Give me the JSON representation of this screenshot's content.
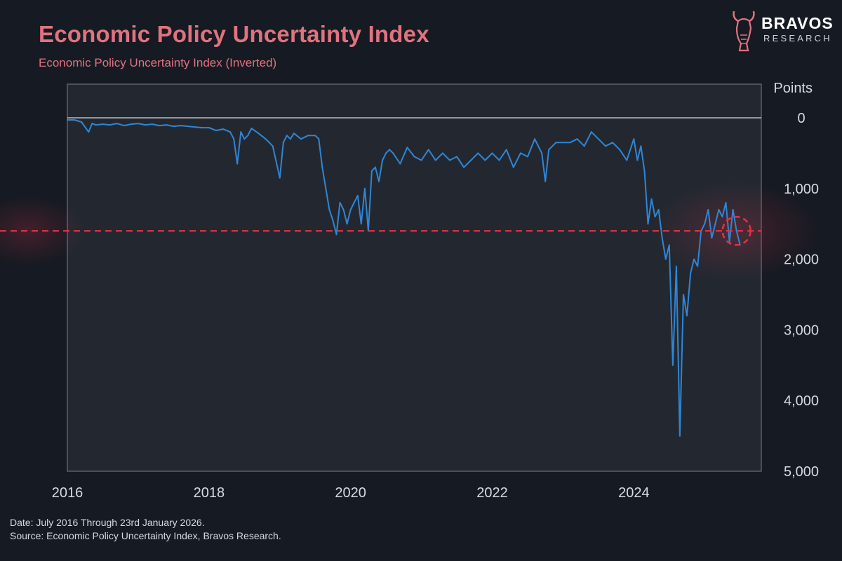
{
  "title": "Economic Policy Uncertainty Index",
  "subtitle": "Economic Policy Uncertainty Index (Inverted)",
  "logo": {
    "name": "BRAVOS",
    "tagline": "RESEARCH",
    "icon": "bull-icon"
  },
  "footer": {
    "date_note": "Date: July 2016 Through 23rd January 2026.",
    "source_note": "Source: Economic Policy Uncertainty Index, Bravos Research."
  },
  "colors": {
    "background": "#161a22",
    "plot_bg": "#232830",
    "line": "#2f86d6",
    "threshold": "#e03248",
    "title": "#e0737f"
  },
  "chart_data": {
    "type": "line",
    "title": "Economic Policy Uncertainty Index",
    "subtitle": "Economic Policy Uncertainty Index (Inverted)",
    "ylabel": "Points",
    "y_inverted": true,
    "ylim": [
      0,
      5000
    ],
    "y_ticks": [
      0,
      1000,
      2000,
      3000,
      4000,
      5000
    ],
    "y_tick_labels": [
      "0",
      "1,000",
      "2,000",
      "3,000",
      "4,000",
      "5,000"
    ],
    "xlim": [
      2016.0,
      2025.8
    ],
    "x_ticks": [
      2016,
      2018,
      2020,
      2022,
      2024
    ],
    "x_tick_labels": [
      "2016",
      "2018",
      "2020",
      "2022",
      "2024"
    ],
    "grid": false,
    "reference_line": {
      "y": 1600,
      "style": "dashed"
    },
    "highlight_marker": {
      "x": 2025.45,
      "y": 1600
    },
    "series": [
      {
        "x": [
          2016.0,
          2016.1,
          2016.2,
          2016.3,
          2016.35,
          2016.4,
          2016.5,
          2016.6,
          2016.7,
          2016.8,
          2016.9,
          2017.0,
          2017.1,
          2017.2,
          2017.3,
          2017.4,
          2017.5,
          2017.6,
          2017.7,
          2017.8,
          2017.9,
          2018.0,
          2018.1,
          2018.2,
          2018.3,
          2018.35,
          2018.4,
          2018.45,
          2018.5,
          2018.55,
          2018.6,
          2018.7,
          2018.8,
          2018.9,
          2019.0,
          2019.05,
          2019.1,
          2019.15,
          2019.2,
          2019.3,
          2019.4,
          2019.5,
          2019.55,
          2019.6,
          2019.7,
          2019.75,
          2019.8,
          2019.85,
          2019.9,
          2019.95,
          2020.0,
          2020.05,
          2020.1,
          2020.15,
          2020.2,
          2020.25,
          2020.3,
          2020.35,
          2020.4,
          2020.45,
          2020.5,
          2020.55,
          2020.6,
          2020.7,
          2020.8,
          2020.9,
          2021.0,
          2021.1,
          2021.2,
          2021.3,
          2021.4,
          2021.5,
          2021.6,
          2021.7,
          2021.8,
          2021.9,
          2022.0,
          2022.1,
          2022.2,
          2022.3,
          2022.4,
          2022.5,
          2022.6,
          2022.7,
          2022.75,
          2022.8,
          2022.9,
          2023.0,
          2023.1,
          2023.2,
          2023.3,
          2023.4,
          2023.5,
          2023.6,
          2023.7,
          2023.8,
          2023.9,
          2024.0,
          2024.05,
          2024.1,
          2024.15,
          2024.2,
          2024.25,
          2024.3,
          2024.35,
          2024.4,
          2024.45,
          2024.5,
          2024.55,
          2024.6,
          2024.65,
          2024.7,
          2024.75,
          2024.8,
          2024.85,
          2024.9,
          2024.95,
          2025.0,
          2025.05,
          2025.1,
          2025.15,
          2025.2,
          2025.25,
          2025.3,
          2025.35,
          2025.4,
          2025.45,
          2025.5
        ],
        "values": [
          30,
          30,
          60,
          200,
          80,
          100,
          90,
          100,
          80,
          110,
          90,
          80,
          100,
          90,
          110,
          100,
          120,
          110,
          120,
          130,
          140,
          140,
          180,
          160,
          200,
          300,
          650,
          200,
          300,
          250,
          150,
          220,
          300,
          400,
          850,
          350,
          250,
          300,
          220,
          300,
          250,
          250,
          300,
          700,
          1300,
          1450,
          1650,
          1200,
          1300,
          1500,
          1300,
          1200,
          1100,
          1500,
          1000,
          1600,
          750,
          700,
          900,
          600,
          500,
          450,
          500,
          650,
          420,
          550,
          600,
          450,
          600,
          500,
          600,
          550,
          700,
          600,
          500,
          600,
          500,
          600,
          450,
          700,
          500,
          550,
          300,
          500,
          900,
          450,
          350,
          350,
          350,
          300,
          400,
          200,
          300,
          400,
          350,
          450,
          600,
          300,
          600,
          400,
          750,
          1500,
          1150,
          1400,
          1300,
          1700,
          2000,
          1800,
          3500,
          2100,
          4500,
          2500,
          2800,
          2200,
          2000,
          2100,
          1600,
          1500,
          1300,
          1700,
          1500,
          1300,
          1400,
          1200,
          1750,
          1300,
          1600,
          1800
        ]
      }
    ]
  }
}
